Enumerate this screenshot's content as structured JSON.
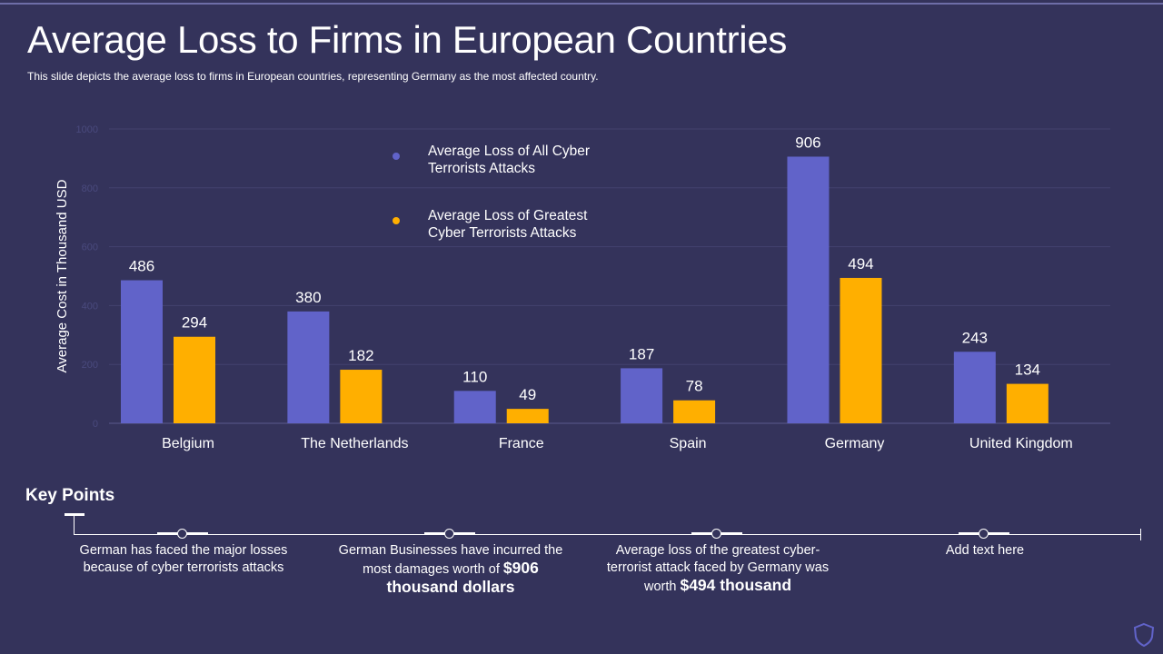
{
  "header": {
    "title": "Average Loss to Firms in European Countries",
    "subtitle": "This slide depicts the average  loss to firms in European countries, representing Germany as the most affected country."
  },
  "chart_data": {
    "type": "bar",
    "title": "",
    "xlabel": "",
    "ylabel": "Average Cost in Thousand USD",
    "ylim": [
      0,
      1000
    ],
    "yticks": [
      0,
      200,
      400,
      600,
      800,
      1000
    ],
    "grid": true,
    "legend_position": "top-center",
    "categories": [
      "Belgium",
      "The Netherlands",
      "France",
      "Spain",
      "Germany",
      "United Kingdom"
    ],
    "series": [
      {
        "name": "Average Loss of All Cyber Terrorists Attacks",
        "legend_lines": [
          "Average Loss of All Cyber",
          "Terrorists Attacks"
        ],
        "color": "#6163c9",
        "values": [
          486,
          380,
          110,
          187,
          906,
          243
        ]
      },
      {
        "name": "Average Loss of Greatest Cyber Terrorists Attacks",
        "legend_lines": [
          "Average Loss of Greatest",
          "Cyber Terrorists Attacks"
        ],
        "color": "#ffaf00",
        "values": [
          294,
          182,
          49,
          78,
          494,
          134
        ]
      }
    ]
  },
  "key_points": {
    "title": "Key Points",
    "items": [
      {
        "text": "German has faced the major losses because of cyber terrorists attacks"
      },
      {
        "text": "German Businesses have incurred the most damages worth of",
        "highlight": "$906 thousand dollars"
      },
      {
        "text": "Average loss of the greatest cyber-terrorist attack faced by Germany was worth",
        "highlight": "$494 thousand"
      },
      {
        "text": "Add text here"
      }
    ]
  },
  "colors": {
    "background": "#34335b",
    "series1": "#6163c9",
    "series2": "#ffaf00",
    "text": "#ffffff",
    "faint_text": "#4a4a7e"
  },
  "icons": {
    "corner": "shield-icon"
  }
}
